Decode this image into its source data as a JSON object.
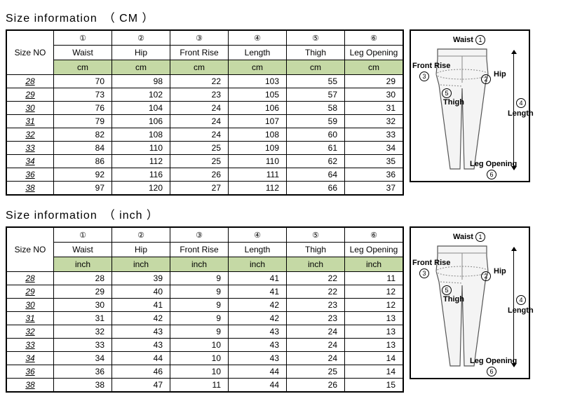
{
  "tables": [
    {
      "title": "Size information　（ CM ）",
      "sizeno_header": "Size NO",
      "columns": [
        {
          "num": "①",
          "label": "Waist",
          "unit": "cm"
        },
        {
          "num": "②",
          "label": "Hip",
          "unit": "cm"
        },
        {
          "num": "③",
          "label": "Front Rise",
          "unit": "cm"
        },
        {
          "num": "④",
          "label": "Length",
          "unit": "cm"
        },
        {
          "num": "⑤",
          "label": "Thigh",
          "unit": "cm"
        },
        {
          "num": "⑥",
          "label": "Leg Opening",
          "unit": "cm"
        }
      ],
      "rows": [
        {
          "size": "28",
          "v": [
            "70",
            "98",
            "22",
            "103",
            "55",
            "29"
          ]
        },
        {
          "size": "29",
          "v": [
            "73",
            "102",
            "23",
            "105",
            "57",
            "30"
          ]
        },
        {
          "size": "30",
          "v": [
            "76",
            "104",
            "24",
            "106",
            "58",
            "31"
          ]
        },
        {
          "size": "31",
          "v": [
            "79",
            "106",
            "24",
            "107",
            "59",
            "32"
          ]
        },
        {
          "size": "32",
          "v": [
            "82",
            "108",
            "24",
            "108",
            "60",
            "33"
          ]
        },
        {
          "size": "33",
          "v": [
            "84",
            "110",
            "25",
            "109",
            "61",
            "34"
          ]
        },
        {
          "size": "34",
          "v": [
            "86",
            "112",
            "25",
            "110",
            "62",
            "35"
          ]
        },
        {
          "size": "36",
          "v": [
            "92",
            "116",
            "26",
            "111",
            "64",
            "36"
          ]
        },
        {
          "size": "38",
          "v": [
            "97",
            "120",
            "27",
            "112",
            "66",
            "37"
          ]
        }
      ]
    },
    {
      "title": "Size information　（ inch ）",
      "sizeno_header": "Size NO",
      "columns": [
        {
          "num": "①",
          "label": "Waist",
          "unit": "inch"
        },
        {
          "num": "②",
          "label": "Hip",
          "unit": "inch"
        },
        {
          "num": "③",
          "label": "Front Rise",
          "unit": "inch"
        },
        {
          "num": "④",
          "label": "Length",
          "unit": "inch"
        },
        {
          "num": "⑤",
          "label": "Thigh",
          "unit": "inch"
        },
        {
          "num": "⑥",
          "label": "Leg Opening",
          "unit": "inch"
        }
      ],
      "rows": [
        {
          "size": "28",
          "v": [
            "28",
            "39",
            "9",
            "41",
            "22",
            "11"
          ]
        },
        {
          "size": "29",
          "v": [
            "29",
            "40",
            "9",
            "41",
            "22",
            "12"
          ]
        },
        {
          "size": "30",
          "v": [
            "30",
            "41",
            "9",
            "42",
            "23",
            "12"
          ]
        },
        {
          "size": "31",
          "v": [
            "31",
            "42",
            "9",
            "42",
            "23",
            "13"
          ]
        },
        {
          "size": "32",
          "v": [
            "32",
            "43",
            "9",
            "43",
            "24",
            "13"
          ]
        },
        {
          "size": "33",
          "v": [
            "33",
            "43",
            "10",
            "43",
            "24",
            "13"
          ]
        },
        {
          "size": "34",
          "v": [
            "34",
            "44",
            "10",
            "43",
            "24",
            "14"
          ]
        },
        {
          "size": "36",
          "v": [
            "36",
            "46",
            "10",
            "44",
            "25",
            "14"
          ]
        },
        {
          "size": "38",
          "v": [
            "38",
            "47",
            "11",
            "44",
            "26",
            "15"
          ]
        }
      ]
    }
  ],
  "diagram": {
    "waist": "Waist",
    "hip": "Hip",
    "front_rise": "Front Rise",
    "length": "Length",
    "thigh": "Thigh",
    "leg_opening": "Leg Opening",
    "n1": "1",
    "n2": "2",
    "n3": "3",
    "n4": "4",
    "n5": "5",
    "n6": "6"
  },
  "style": {
    "unit_bg": "#c5d9a5",
    "border": "#000000",
    "title_fontsize": 16,
    "cell_fontsize": 12
  }
}
